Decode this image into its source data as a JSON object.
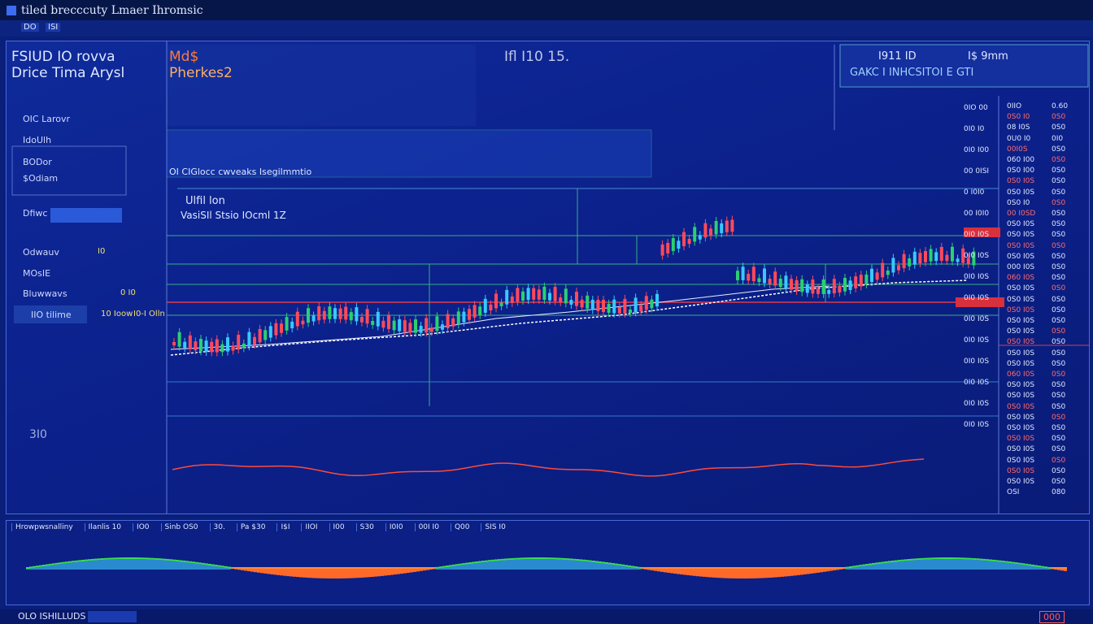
{
  "window": {
    "title": "tiled brecccuty Lmaer Ihromsic",
    "tabs": [
      "DO",
      "ISI"
    ]
  },
  "header": {
    "line1": "FSIUD IO rovva",
    "line2": "Drice Tima Arysl",
    "symbol": "Md$",
    "subtitle": "Pherkes2",
    "timer": "Ifl I10 15.",
    "info_top_left": "I911 ID",
    "info_top_right": "I$ 9mm",
    "info_bottom": "GAKC I INHCSITOI E GTI"
  },
  "sidebar": {
    "items": [
      "OIC Larovr",
      "IdoUlh",
      "BODor",
      "$Odiam",
      "Dfiwc",
      "Odwauv",
      "MOsIE",
      "Bluwwavs",
      "IIO tilime"
    ],
    "values": [
      "I0",
      "0 I0",
      "10 Ioow",
      "I0-I Olln"
    ],
    "footer": "3I0"
  },
  "chart": {
    "ticker_bar": "OI CIGlocc cwveaks Isegilmmtio",
    "label1": "Ulfil lon",
    "label2": "VasiSIl Stsio IOcml 1Z"
  },
  "price_list": [
    [
      "0IIO",
      "0.60"
    ],
    [
      "0S0 I0",
      "0S0"
    ],
    [
      "08 I0S",
      "0S0"
    ],
    [
      "0U0 I0",
      "0I0"
    ],
    [
      "00I0S",
      "0S0"
    ],
    [
      "060 I00",
      "0S0"
    ],
    [
      "0S0 I00",
      "0S0"
    ],
    [
      "0S0 I0S",
      "0S0"
    ],
    [
      "0S0 I0S",
      "0S0"
    ],
    [
      "0S0 I0",
      "0S0"
    ],
    [
      "00 I0SD",
      "0S0"
    ],
    [
      "0S0 I0S",
      "0S0"
    ],
    [
      "0S0 I0S",
      "0S0"
    ],
    [
      "0S0 I0S",
      "0S0"
    ],
    [
      "0S0 I0S",
      "0S0"
    ],
    [
      "000 I0S",
      "0S0"
    ],
    [
      "060 I0S",
      "0S0"
    ],
    [
      "0S0 I0S",
      "0S0"
    ],
    [
      "0S0 I0S",
      "0S0"
    ],
    [
      "0S0 I0S",
      "0S0"
    ],
    [
      "0S0 I0S",
      "0S0"
    ],
    [
      "0S0 I0S",
      "0S0"
    ],
    [
      "0S0 I0S",
      "0S0"
    ],
    [
      "0S0 I0S",
      "0S0"
    ],
    [
      "0S0 I0S",
      "0S0"
    ],
    [
      "060 I0S",
      "0S0"
    ],
    [
      "0S0 I0S",
      "0S0"
    ],
    [
      "0S0 I0S",
      "0S0"
    ],
    [
      "0S0 I0S",
      "0S0"
    ],
    [
      "0S0 I0S",
      "0S0"
    ],
    [
      "0S0 I0S",
      "0S0"
    ],
    [
      "0S0 I0S",
      "0S0"
    ],
    [
      "0S0 I0S",
      "0S0"
    ],
    [
      "0S0 I0S",
      "0S0"
    ],
    [
      "0S0 I0S",
      "0S0"
    ],
    [
      "0S0 I0S",
      "0S0"
    ],
    [
      "OSI",
      "080"
    ]
  ],
  "axis_labels": [
    "0IO 00",
    "0I0 I0",
    "0I0 I00",
    "00 0ISI",
    "0 I0I0",
    "00 I0I0",
    "0I0 I0S",
    "0I0 I0S",
    "0I0 I0S",
    "0I0 I0S",
    "0I0 I0S",
    "0I0 I0S",
    "0I0 I0S",
    "0I0 I0S",
    "0I0 I0S",
    "0I0 I0S"
  ],
  "toolbar": [
    "Hrowpwsnalliny",
    "Ilanlis 10",
    "IO0",
    "Sinb OS0",
    "30.",
    "Pa $30",
    "I$I",
    "IIOI",
    "I00",
    "S30",
    "I0I0",
    "00I I0",
    "Q00",
    "SIS I0"
  ],
  "footer": {
    "status": "OLO ISHILLUDS",
    "right": "000"
  }
}
